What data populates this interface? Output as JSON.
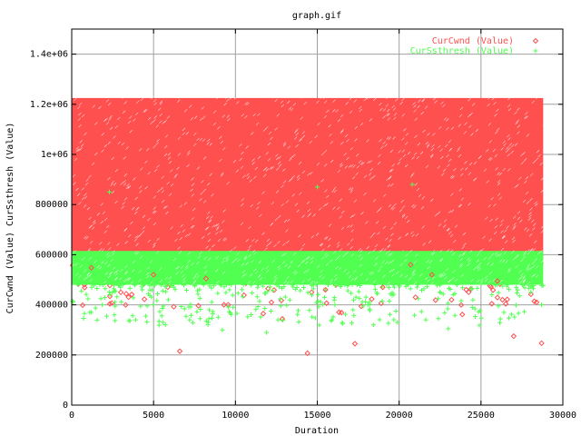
{
  "chart_data": {
    "type": "scatter",
    "title": "graph.gif",
    "xlabel": "Duration",
    "ylabel": "CurCwnd (Value) CurSsthresh (Value)",
    "xlim": [
      0,
      30000
    ],
    "ylim": [
      0,
      1500000
    ],
    "x_ticks": [
      0,
      5000,
      10000,
      15000,
      20000,
      25000,
      30000
    ],
    "x_tick_labels": [
      "0",
      "5000",
      "10000",
      "15000",
      "20000",
      "25000",
      "30000"
    ],
    "y_ticks": [
      0,
      200000,
      400000,
      600000,
      800000,
      1000000,
      1200000,
      1400000
    ],
    "y_tick_labels": [
      "0",
      "200000",
      "400000",
      "600000",
      "800000",
      "1e+06",
      "1.2e+06",
      "1.4e+06"
    ],
    "grid": true,
    "legend_position": "top-right",
    "series": [
      {
        "name": "CurCwnd (Value)",
        "marker": "diamond",
        "color": "#ff5050",
        "dense_band": {
          "x": [
            0,
            28800
          ],
          "y": [
            560000,
            1225000
          ]
        },
        "outliers": [
          {
            "x": 6600,
            "y": 215000
          },
          {
            "x": 14400,
            "y": 207000
          },
          {
            "x": 17300,
            "y": 245000
          },
          {
            "x": 27000,
            "y": 275000
          },
          {
            "x": 28700,
            "y": 247000
          },
          {
            "x": 9300,
            "y": 400000
          },
          {
            "x": 11700,
            "y": 365000
          },
          {
            "x": 12200,
            "y": 410000
          },
          {
            "x": 3000,
            "y": 450000
          },
          {
            "x": 8200,
            "y": 505000
          },
          {
            "x": 19000,
            "y": 470000
          },
          {
            "x": 21000,
            "y": 430000
          },
          {
            "x": 23200,
            "y": 420000
          },
          {
            "x": 28400,
            "y": 410000
          },
          {
            "x": 20700,
            "y": 560000
          },
          {
            "x": 22000,
            "y": 520000
          },
          {
            "x": 26000,
            "y": 495000
          },
          {
            "x": 5000,
            "y": 520000
          },
          {
            "x": 15500,
            "y": 460000
          },
          {
            "x": 1200,
            "y": 548000
          }
        ]
      },
      {
        "name": "CurSsthresh (Value)",
        "marker": "plus",
        "color": "#50ff50",
        "dense_band": {
          "x": [
            0,
            28800
          ],
          "y": [
            480000,
            615000
          ]
        },
        "outliers": [
          {
            "x": 7200,
            "y": 340000
          },
          {
            "x": 9200,
            "y": 300000
          },
          {
            "x": 3900,
            "y": 340000
          },
          {
            "x": 2600,
            "y": 360000
          },
          {
            "x": 12600,
            "y": 340000
          },
          {
            "x": 15900,
            "y": 340000
          },
          {
            "x": 22400,
            "y": 345000
          },
          {
            "x": 23000,
            "y": 305000
          },
          {
            "x": 26400,
            "y": 370000
          },
          {
            "x": 1200,
            "y": 370000
          },
          {
            "x": 28700,
            "y": 400000
          },
          {
            "x": 11900,
            "y": 290000
          },
          {
            "x": 8400,
            "y": 380000
          },
          {
            "x": 17800,
            "y": 395000
          },
          {
            "x": 19400,
            "y": 415000
          },
          {
            "x": 5600,
            "y": 395000
          },
          {
            "x": 2300,
            "y": 850000
          },
          {
            "x": 15000,
            "y": 870000
          },
          {
            "x": 20800,
            "y": 880000
          }
        ]
      }
    ]
  }
}
